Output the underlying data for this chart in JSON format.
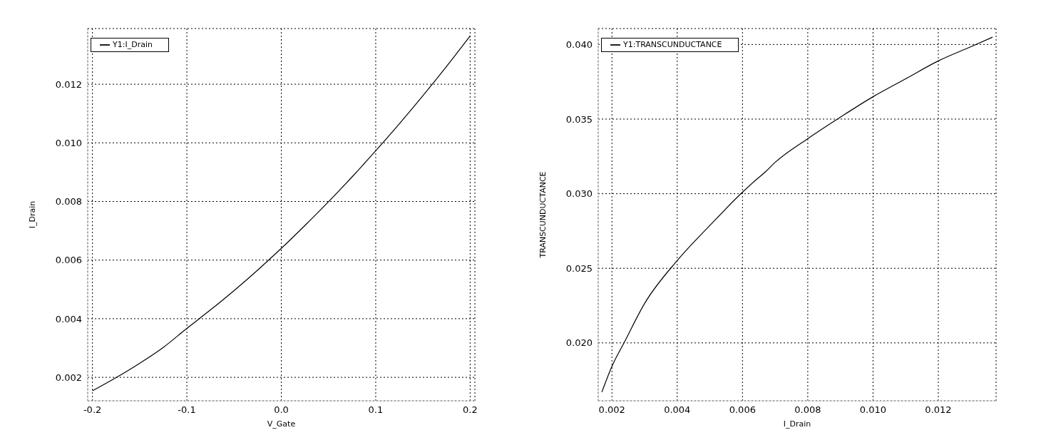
{
  "chart_data": [
    {
      "type": "line",
      "xlabel": "V_Gate",
      "ylabel": "I_Drain",
      "grid": true,
      "legend": "top left",
      "x": [
        -0.2,
        -0.175,
        -0.15,
        -0.125,
        -0.1,
        -0.075,
        -0.05,
        -0.025,
        0,
        0.025,
        0.05,
        0.075,
        0.1,
        0.125,
        0.15,
        0.175,
        0.2
      ],
      "series": [
        {
          "name": "Y1:I_Drain",
          "color": "#000000",
          "values": [
            0.00154,
            0.00199,
            0.00248,
            0.00302,
            0.00367,
            0.0043,
            0.00496,
            0.00566,
            0.0064,
            0.00718,
            0.00799,
            0.00884,
            0.00973,
            0.01065,
            0.01161,
            0.01261,
            0.01365
          ]
        }
      ],
      "xlim": [
        -0.205,
        0.205
      ],
      "ylim": [
        0.0012,
        0.0139
      ],
      "xticks": [
        -0.2,
        -0.1,
        {
          "value": 0,
          "label": "0.0"
        },
        0.1,
        0.2
      ],
      "yticks": [
        0.002,
        0.004,
        0.006,
        0.008,
        {
          "value": 0.01,
          "label": "0.010"
        },
        0.012
      ]
    },
    {
      "type": "line",
      "xlabel": "I_Drain",
      "ylabel": "TRANSCUNDUCTANCE",
      "grid": true,
      "legend": "top left",
      "x": [
        0.00169,
        0.002,
        0.00237,
        0.003,
        0.004,
        0.005,
        0.006,
        0.0064,
        0.0067,
        0.007,
        0.008,
        0.009,
        0.01,
        0.011,
        0.012,
        0.013,
        0.01366
      ],
      "series": [
        {
          "name": "Y1:TRANSCUNDUCTANCE",
          "color": "#000000",
          "values": [
            0.0167,
            0.01843,
            0.02,
            0.02264,
            0.02552,
            0.02787,
            0.0301,
            0.0309,
            0.03146,
            0.0321,
            0.03369,
            0.03513,
            0.0365,
            0.0377,
            0.0389,
            0.03985,
            0.04049
          ]
        }
      ],
      "xlim": [
        0.00158,
        0.01377
      ],
      "ylim": [
        0.01612,
        0.04107
      ],
      "xticks": [
        0.002,
        0.004,
        0.006,
        0.008,
        {
          "value": 0.01,
          "label": "0.010"
        },
        0.012
      ],
      "yticks": [
        {
          "value": 0.02,
          "label": "0.020"
        },
        0.025,
        {
          "value": 0.03,
          "label": "0.030"
        },
        0.035,
        {
          "value": 0.04,
          "label": "0.040"
        }
      ]
    }
  ]
}
